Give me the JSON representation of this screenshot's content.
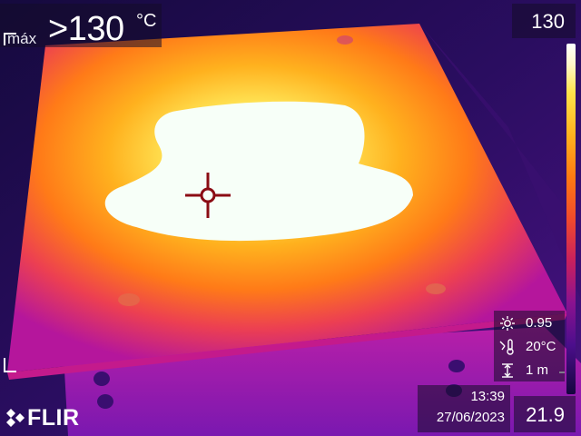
{
  "measurement": {
    "label": "máx",
    "value": ">130",
    "unit": "°C"
  },
  "scale": {
    "max": "130",
    "min": "21.9",
    "current_marker": "21.9"
  },
  "parameters": [
    {
      "icon": "emissivity-icon",
      "value": "0.95"
    },
    {
      "icon": "reflected-temperature-icon",
      "value": "20°C"
    },
    {
      "icon": "distance-icon",
      "value": "1 m"
    }
  ],
  "timestamp": {
    "time": "13:39",
    "date": "27/06/2023"
  },
  "brand": {
    "name": "FLIR"
  },
  "palette": {
    "hot": "#ffffff",
    "warm": "#ffb21e",
    "mid": "#f04a2c",
    "cool": "#8a1290",
    "cold": "#15063e",
    "crosshair": "#8b0c14"
  }
}
